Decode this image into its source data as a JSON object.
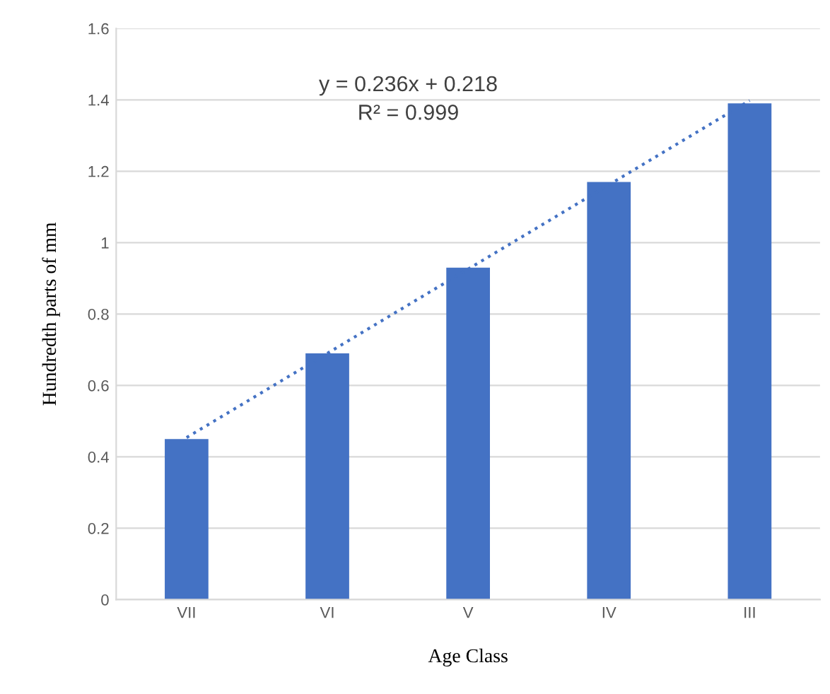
{
  "chart_data": {
    "type": "bar",
    "xlabel": "Age Class",
    "ylabel": "Hundredth parts of mm",
    "categories": [
      "VII",
      "VI",
      "V",
      "IV",
      "III"
    ],
    "series": [
      {
        "color": "#4472c4",
        "values": [
          0.45,
          0.69,
          0.93,
          1.17,
          1.39
        ]
      },
      {
        "type": "line",
        "color": "#4472c4",
        "line_style": "dotted",
        "x": [
          "VII",
          "VI",
          "V",
          "IV",
          "III"
        ],
        "values": [
          0.454,
          0.69,
          0.926,
          1.162,
          1.398
        ]
      }
    ],
    "annotations": [
      "y = 0.236x + 0.218",
      "R² = 0.999"
    ],
    "ylim": [
      0,
      1.6
    ],
    "yticks": [
      0,
      0.2,
      0.4,
      0.6,
      0.8,
      1,
      1.2,
      1.4,
      1.6
    ],
    "grid": "y"
  }
}
